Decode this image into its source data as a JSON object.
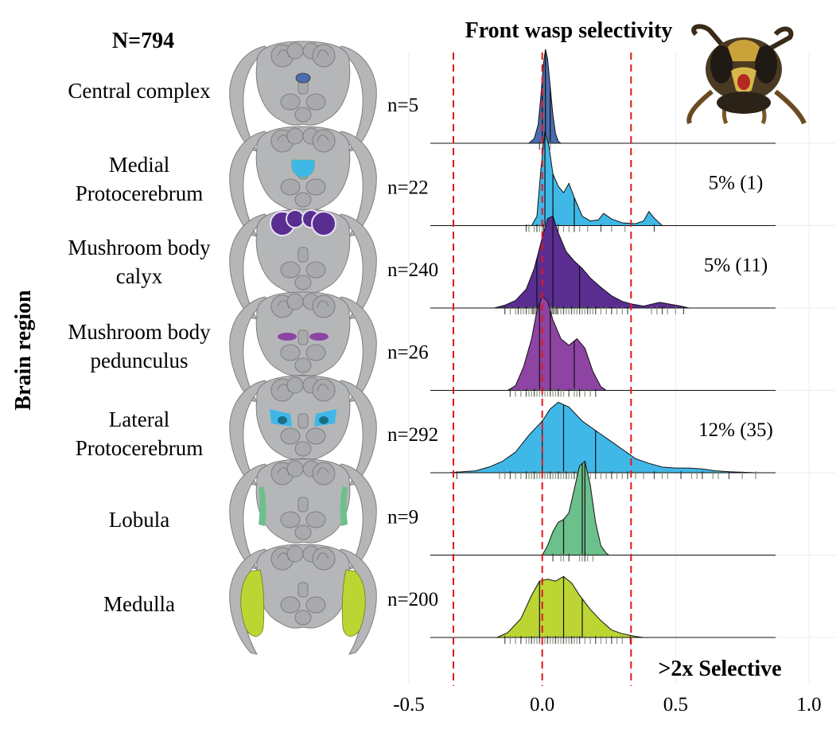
{
  "figure": {
    "total_label": "N=794",
    "y_axis_label": "Brain region",
    "legend_note": "Wasp head photo (decorative)"
  },
  "chart_data": {
    "type": "ridgeline",
    "title": "Front wasp selectivity",
    "xlim": [
      -0.5,
      1.0
    ],
    "x_ticks": [
      {
        "value": -0.5,
        "label": "-0.5"
      },
      {
        "value": 0.0,
        "label": "0.0"
      },
      {
        "value": 0.5,
        "label": "0.5"
      },
      {
        "value": 1.0,
        "label": "1.0"
      }
    ],
    "thresholds": [
      -0.333,
      0.0,
      0.333
    ],
    "threshold_color": "#e3161b",
    "selective_label": ">2x Selective",
    "grid": true,
    "series": [
      {
        "name": "Central complex",
        "label_lines": [
          "Central complex"
        ],
        "n_label": "n=5",
        "color": "#4a6db0",
        "brain_icon": "central",
        "density": [
          [
            -0.05,
            0
          ],
          [
            -0.03,
            0.05
          ],
          [
            -0.015,
            0.2
          ],
          [
            -0.005,
            0.5
          ],
          [
            0.005,
            0.85
          ],
          [
            0.012,
            1.0
          ],
          [
            0.02,
            0.9
          ],
          [
            0.03,
            0.6
          ],
          [
            0.04,
            0.3
          ],
          [
            0.05,
            0.1
          ],
          [
            0.06,
            0.02
          ],
          [
            0.07,
            0
          ]
        ],
        "quartiles": [
          0.0,
          0.012,
          0.03
        ],
        "rug": [
          -0.01,
          0.0,
          0.01,
          0.02,
          0.03
        ],
        "pct_label": ""
      },
      {
        "name": "Medial Protocerebrum",
        "label_lines": [
          "Medial",
          "Protocerebrum"
        ],
        "n_label": "n=22",
        "color": "#3fb8e8",
        "brain_icon": "medial",
        "density": [
          [
            -0.04,
            0
          ],
          [
            -0.02,
            0.1
          ],
          [
            -0.005,
            0.6
          ],
          [
            0.01,
            1.0
          ],
          [
            0.025,
            0.85
          ],
          [
            0.04,
            0.55
          ],
          [
            0.06,
            0.42
          ],
          [
            0.08,
            0.35
          ],
          [
            0.1,
            0.45
          ],
          [
            0.12,
            0.3
          ],
          [
            0.15,
            0.1
          ],
          [
            0.18,
            0.05
          ],
          [
            0.21,
            0.06
          ],
          [
            0.23,
            0.13
          ],
          [
            0.26,
            0.07
          ],
          [
            0.3,
            0.03
          ],
          [
            0.35,
            0.02
          ],
          [
            0.38,
            0.05
          ],
          [
            0.4,
            0.15
          ],
          [
            0.42,
            0.08
          ],
          [
            0.45,
            0
          ],
          [
            0.48,
            0
          ]
        ],
        "quartiles": [
          0.01,
          0.04,
          0.12
        ],
        "rug": [
          -0.06,
          -0.05,
          -0.03,
          -0.02,
          -0.01,
          0.0,
          0.005,
          0.01,
          0.02,
          0.03,
          0.04,
          0.05,
          0.06,
          0.08,
          0.1,
          0.12,
          0.14,
          0.17,
          0.22,
          0.26,
          0.31,
          0.42
        ],
        "pct_label": "5% (1)"
      },
      {
        "name": "Mushroom body calyx",
        "label_lines": [
          "Mushroom body",
          "calyx"
        ],
        "n_label": "n=240",
        "color": "#5a2d91",
        "brain_icon": "calyx",
        "density": [
          [
            -0.18,
            0
          ],
          [
            -0.14,
            0.03
          ],
          [
            -0.1,
            0.08
          ],
          [
            -0.06,
            0.2
          ],
          [
            -0.03,
            0.42
          ],
          [
            0.0,
            0.75
          ],
          [
            0.02,
            0.95
          ],
          [
            0.04,
            0.98
          ],
          [
            0.06,
            0.8
          ],
          [
            0.09,
            0.6
          ],
          [
            0.12,
            0.5
          ],
          [
            0.15,
            0.42
          ],
          [
            0.18,
            0.32
          ],
          [
            0.22,
            0.22
          ],
          [
            0.26,
            0.13
          ],
          [
            0.3,
            0.07
          ],
          [
            0.34,
            0.04
          ],
          [
            0.38,
            0.02
          ],
          [
            0.41,
            0.04
          ],
          [
            0.44,
            0.06
          ],
          [
            0.48,
            0.04
          ],
          [
            0.52,
            0.02
          ],
          [
            0.55,
            0
          ]
        ],
        "quartiles": [
          -0.02,
          0.04,
          0.14
        ],
        "rug": [
          -0.14,
          -0.12,
          -0.1,
          -0.09,
          -0.08,
          -0.07,
          -0.06,
          -0.05,
          -0.04,
          -0.035,
          -0.03,
          -0.025,
          -0.02,
          -0.015,
          -0.01,
          -0.005,
          0.0,
          0.005,
          0.01,
          0.015,
          0.02,
          0.025,
          0.03,
          0.035,
          0.04,
          0.045,
          0.05,
          0.055,
          0.06,
          0.07,
          0.08,
          0.09,
          0.1,
          0.11,
          0.12,
          0.13,
          0.14,
          0.15,
          0.16,
          0.17,
          0.18,
          0.19,
          0.2,
          0.22,
          0.24,
          0.26,
          0.28,
          0.3,
          0.32,
          0.41,
          0.43,
          0.45,
          0.47,
          0.5,
          0.53
        ],
        "pct_label": "5% (11)"
      },
      {
        "name": "Mushroom body pedunculus",
        "label_lines": [
          "Mushroom body",
          "pedunculus"
        ],
        "n_label": "n=26",
        "color": "#8d44a3",
        "brain_icon": "pedunculus",
        "density": [
          [
            -0.13,
            0
          ],
          [
            -0.1,
            0.05
          ],
          [
            -0.07,
            0.25
          ],
          [
            -0.04,
            0.55
          ],
          [
            -0.02,
            0.85
          ],
          [
            0.0,
            1.0
          ],
          [
            0.02,
            0.95
          ],
          [
            0.04,
            0.75
          ],
          [
            0.07,
            0.55
          ],
          [
            0.1,
            0.48
          ],
          [
            0.13,
            0.55
          ],
          [
            0.16,
            0.45
          ],
          [
            0.19,
            0.2
          ],
          [
            0.22,
            0.04
          ],
          [
            0.24,
            0
          ]
        ],
        "quartiles": [
          -0.01,
          0.03,
          0.12
        ],
        "rug": [
          -0.12,
          -0.1,
          -0.08,
          -0.06,
          -0.05,
          -0.04,
          -0.03,
          -0.02,
          -0.01,
          0.0,
          0.01,
          0.02,
          0.03,
          0.04,
          0.05,
          0.06,
          0.07,
          0.08,
          0.1,
          0.12,
          0.13,
          0.14,
          0.16,
          0.18,
          0.2
        ],
        "pct_label": ""
      },
      {
        "name": "Lateral Protocerebrum",
        "label_lines": [
          "Lateral",
          "Protocerebrum"
        ],
        "n_label": "n=292",
        "color": "#3fb8e8",
        "brain_icon": "lateral",
        "density": [
          [
            -0.35,
            0
          ],
          [
            -0.25,
            0.02
          ],
          [
            -0.2,
            0.06
          ],
          [
            -0.15,
            0.12
          ],
          [
            -0.1,
            0.22
          ],
          [
            -0.05,
            0.4
          ],
          [
            0.0,
            0.55
          ],
          [
            0.03,
            0.68
          ],
          [
            0.06,
            0.75
          ],
          [
            0.1,
            0.7
          ],
          [
            0.15,
            0.55
          ],
          [
            0.2,
            0.45
          ],
          [
            0.25,
            0.35
          ],
          [
            0.3,
            0.25
          ],
          [
            0.35,
            0.15
          ],
          [
            0.4,
            0.1
          ],
          [
            0.45,
            0.06
          ],
          [
            0.5,
            0.05
          ],
          [
            0.55,
            0.05
          ],
          [
            0.6,
            0.04
          ],
          [
            0.65,
            0.02
          ],
          [
            0.7,
            0.01
          ],
          [
            0.8,
            0
          ]
        ],
        "quartiles": [
          0.0,
          0.08,
          0.2
        ],
        "rug": [
          -0.32,
          -0.16,
          -0.14,
          -0.12,
          -0.1,
          -0.08,
          -0.06,
          -0.05,
          -0.04,
          -0.03,
          -0.02,
          -0.01,
          0.0,
          0.01,
          0.02,
          0.03,
          0.04,
          0.05,
          0.06,
          0.07,
          0.08,
          0.09,
          0.1,
          0.11,
          0.12,
          0.13,
          0.14,
          0.15,
          0.16,
          0.18,
          0.2,
          0.22,
          0.24,
          0.26,
          0.28,
          0.3,
          0.32,
          0.35,
          0.38,
          0.42,
          0.45,
          0.47,
          0.52,
          0.56,
          0.58,
          0.6,
          0.64,
          0.66,
          0.7,
          0.75,
          0.8
        ],
        "pct_label": "12% (35)"
      },
      {
        "name": "Lobula",
        "label_lines": [
          "Lobula"
        ],
        "n_label": "n=9",
        "color": "#6cc08b",
        "brain_icon": "lobula",
        "density": [
          [
            0.0,
            0
          ],
          [
            0.02,
            0.1
          ],
          [
            0.04,
            0.25
          ],
          [
            0.06,
            0.35
          ],
          [
            0.08,
            0.38
          ],
          [
            0.1,
            0.45
          ],
          [
            0.12,
            0.7
          ],
          [
            0.14,
            0.95
          ],
          [
            0.16,
            1.0
          ],
          [
            0.18,
            0.75
          ],
          [
            0.2,
            0.35
          ],
          [
            0.22,
            0.1
          ],
          [
            0.24,
            0.02
          ],
          [
            0.25,
            0
          ]
        ],
        "quartiles": [
          0.08,
          0.15,
          0.16
        ],
        "rug": [
          0.04,
          0.07,
          0.08,
          0.1,
          0.14,
          0.15,
          0.16,
          0.17,
          0.19
        ],
        "pct_label": ""
      },
      {
        "name": "Medulla",
        "label_lines": [
          "Medulla"
        ],
        "n_label": "n=200",
        "color": "#bcd533",
        "brain_icon": "medulla",
        "density": [
          [
            -0.17,
            0
          ],
          [
            -0.13,
            0.05
          ],
          [
            -0.08,
            0.2
          ],
          [
            -0.04,
            0.45
          ],
          [
            -0.01,
            0.6
          ],
          [
            0.02,
            0.62
          ],
          [
            0.05,
            0.6
          ],
          [
            0.08,
            0.65
          ],
          [
            0.11,
            0.58
          ],
          [
            0.14,
            0.45
          ],
          [
            0.18,
            0.3
          ],
          [
            0.22,
            0.18
          ],
          [
            0.26,
            0.08
          ],
          [
            0.3,
            0.04
          ],
          [
            0.35,
            0.01
          ],
          [
            0.38,
            0
          ]
        ],
        "quartiles": [
          -0.01,
          0.08,
          0.15
        ],
        "rug": [
          -0.14,
          -0.12,
          -0.1,
          -0.08,
          -0.06,
          -0.05,
          -0.04,
          -0.03,
          -0.02,
          -0.01,
          0.0,
          0.01,
          0.02,
          0.03,
          0.04,
          0.05,
          0.06,
          0.07,
          0.08,
          0.09,
          0.1,
          0.11,
          0.12,
          0.13,
          0.14,
          0.16,
          0.18,
          0.2,
          0.22,
          0.24,
          0.26,
          0.28,
          0.3,
          0.33
        ],
        "pct_label": ""
      }
    ]
  }
}
